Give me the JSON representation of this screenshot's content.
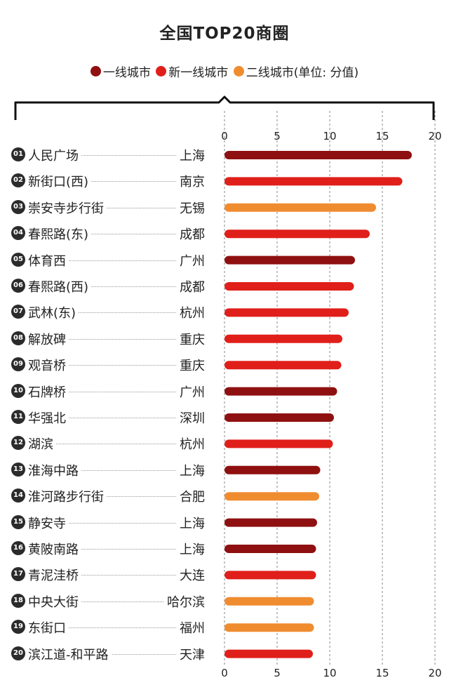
{
  "title": "全国TOP20商圈",
  "legend": [
    {
      "label": "一线城市",
      "color": "#8f1010"
    },
    {
      "label": "新一线城市",
      "color": "#e01f1a"
    },
    {
      "label": "二线城市(单位: 分值)",
      "color": "#f08c30"
    }
  ],
  "chart_data": {
    "type": "bar",
    "orientation": "horizontal",
    "title": "全国TOP20商圈",
    "xlim": [
      0,
      20
    ],
    "x_ticks": [
      "0",
      "5",
      "10",
      "15",
      "20"
    ],
    "grid": "vertical dashed",
    "legend_position": "top",
    "rows": [
      {
        "rank": "01",
        "name": "人民广场",
        "city": "上海",
        "tier": "一线城市",
        "value": 17.8
      },
      {
        "rank": "02",
        "name": "新街口(西)",
        "city": "南京",
        "tier": "新一线城市",
        "value": 16.9
      },
      {
        "rank": "03",
        "name": "崇安寺步行街",
        "city": "无锡",
        "tier": "二线城市",
        "value": 14.4
      },
      {
        "rank": "04",
        "name": "春熙路(东)",
        "city": "成都",
        "tier": "新一线城市",
        "value": 13.8
      },
      {
        "rank": "05",
        "name": "体育西",
        "city": "广州",
        "tier": "一线城市",
        "value": 12.4
      },
      {
        "rank": "06",
        "name": "春熙路(西)",
        "city": "成都",
        "tier": "新一线城市",
        "value": 12.3
      },
      {
        "rank": "07",
        "name": "武林(东)",
        "city": "杭州",
        "tier": "新一线城市",
        "value": 11.8
      },
      {
        "rank": "08",
        "name": "解放碑",
        "city": "重庆",
        "tier": "新一线城市",
        "value": 11.2
      },
      {
        "rank": "09",
        "name": "观音桥",
        "city": "重庆",
        "tier": "新一线城市",
        "value": 11.1
      },
      {
        "rank": "10",
        "name": "石牌桥",
        "city": "广州",
        "tier": "一线城市",
        "value": 10.7
      },
      {
        "rank": "11",
        "name": "华强北",
        "city": "深圳",
        "tier": "一线城市",
        "value": 10.4
      },
      {
        "rank": "12",
        "name": "湖滨",
        "city": "杭州",
        "tier": "新一线城市",
        "value": 10.3
      },
      {
        "rank": "13",
        "name": "淮海中路",
        "city": "上海",
        "tier": "一线城市",
        "value": 9.1
      },
      {
        "rank": "14",
        "name": "淮河路步行街",
        "city": "合肥",
        "tier": "二线城市",
        "value": 9.0
      },
      {
        "rank": "15",
        "name": "静安寺",
        "city": "上海",
        "tier": "一线城市",
        "value": 8.8
      },
      {
        "rank": "16",
        "name": "黄陂南路",
        "city": "上海",
        "tier": "一线城市",
        "value": 8.7
      },
      {
        "rank": "17",
        "name": "青泥洼桥",
        "city": "大连",
        "tier": "新一线城市",
        "value": 8.7
      },
      {
        "rank": "18",
        "name": "中央大街",
        "city": "哈尔滨",
        "tier": "二线城市",
        "value": 8.5
      },
      {
        "rank": "19",
        "name": "东街口",
        "city": "福州",
        "tier": "二线城市",
        "value": 8.5
      },
      {
        "rank": "20",
        "name": "滨江道-和平路",
        "city": "天津",
        "tier": "新一线城市",
        "value": 8.4
      }
    ]
  }
}
